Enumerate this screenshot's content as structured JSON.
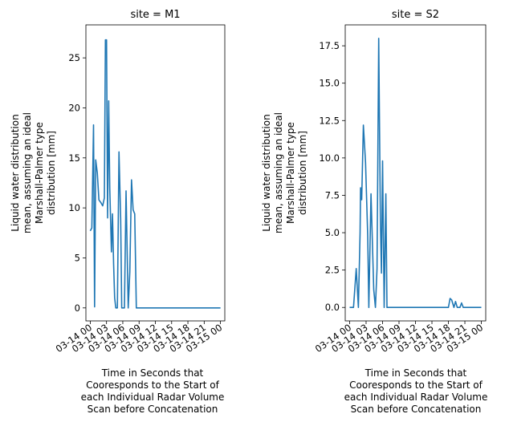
{
  "chart_data": [
    {
      "type": "line",
      "title": "site = M1",
      "ylabel": [
        "Liquid water distribution",
        "mean, assuming an ideal",
        "Marshall-Palmer type",
        "distribution [mm]"
      ],
      "xlabel": [
        "Time in Seconds that",
        "Cooresponds to the Start of",
        "each Individual Radar Volume",
        "Scan before Concatenation"
      ],
      "x_ticks": [
        "03-14 00",
        "03-14 03",
        "03-14 06",
        "03-14 09",
        "03-14 12",
        "03-14 15",
        "03-14 18",
        "03-14 21",
        "03-15 00"
      ],
      "y_ticks": [
        0,
        5,
        10,
        15,
        20,
        25
      ],
      "ylim": [
        -1.3,
        28.3
      ],
      "xlim_hours": [
        -0.8,
        24.8
      ],
      "color": "#1f77b4",
      "series": [
        {
          "x_hours": [
            0,
            0.3,
            0.6,
            0.8,
            1.0,
            1.3,
            1.6,
            2.0,
            2.3,
            2.6,
            2.8,
            3.0,
            3.2,
            3.4,
            3.6,
            3.9,
            4.1,
            4.3,
            4.5,
            4.7,
            5.0,
            5.3,
            5.6,
            5.8,
            6.0,
            6.3,
            6.6,
            7.0,
            7.3,
            7.6,
            7.9,
            8.2,
            8.5,
            8.8,
            9.1,
            9.4,
            10,
            12,
            15,
            18,
            21,
            24
          ],
          "values": [
            7.7,
            8.0,
            18.3,
            0.1,
            14.8,
            13.5,
            10.8,
            10.5,
            10.2,
            11.0,
            26.8,
            26.8,
            9.0,
            20.7,
            12.0,
            5.6,
            9.4,
            4.4,
            1.0,
            0.0,
            0.0,
            15.6,
            8.9,
            0.0,
            0.0,
            0.0,
            11.7,
            0.0,
            3.6,
            12.8,
            9.8,
            9.4,
            0.0,
            0.0,
            0.0,
            0.0,
            0.0,
            0.0,
            0.0,
            0.0,
            0.0,
            0.0
          ]
        }
      ]
    },
    {
      "type": "line",
      "title": "site = S2",
      "ylabel": [
        "Liquid water distribution",
        "mean, assuming an ideal",
        "Marshall-Palmer type",
        "distribution [mm]"
      ],
      "xlabel": [
        "Time in Seconds that",
        "Cooresponds to the Start of",
        "each Individual Radar Volume",
        "Scan before Concatenation"
      ],
      "x_ticks": [
        "03-14 00",
        "03-14 03",
        "03-14 06",
        "03-14 09",
        "03-14 12",
        "03-14 15",
        "03-14 18",
        "03-14 21",
        "03-15 00"
      ],
      "y_ticks": [
        "0.0",
        "2.5",
        "5.0",
        "7.5",
        "10.0",
        "12.5",
        "15.0",
        "17.5"
      ],
      "ylim": [
        -0.9,
        18.9
      ],
      "xlim_hours": [
        -0.8,
        24.8
      ],
      "color": "#1f77b4",
      "series": [
        {
          "x_hours": [
            0,
            0.7,
            1.2,
            1.6,
            1.9,
            2.0,
            2.2,
            2.5,
            2.9,
            3.3,
            3.5,
            3.9,
            4.4,
            4.7,
            5.0,
            5.3,
            5.6,
            5.8,
            6.0,
            6.3,
            6.6,
            6.8,
            7.0,
            7.3,
            7.6,
            8.0,
            10,
            12,
            15,
            18,
            18.3,
            18.6,
            19.0,
            19.3,
            19.6,
            20.1,
            20.4,
            20.7,
            21.0,
            24
          ],
          "values": [
            0.0,
            0.0,
            2.6,
            0.0,
            5.0,
            8.0,
            7.2,
            12.2,
            9.7,
            4.8,
            0.0,
            7.6,
            1.2,
            0.0,
            2.6,
            18.0,
            5.8,
            2.3,
            9.8,
            0.0,
            7.6,
            0.0,
            0.0,
            0.0,
            0.0,
            0.0,
            0.0,
            0.0,
            0.0,
            0.0,
            0.6,
            0.5,
            0.0,
            0.4,
            0.0,
            0.0,
            0.3,
            0.0,
            0.0,
            0.0
          ]
        }
      ]
    }
  ]
}
